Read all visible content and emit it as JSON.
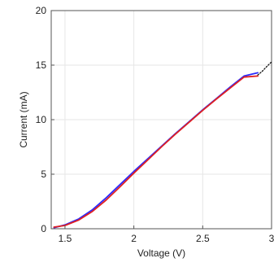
{
  "chart_data": {
    "type": "line",
    "title": "",
    "xlabel": "Voltage (V)",
    "ylabel": "Current (mA)",
    "xlim": [
      1.4,
      3.0
    ],
    "ylim": [
      0,
      20
    ],
    "xticks": [
      1.5,
      2,
      2.5,
      3
    ],
    "xtick_labels": [
      "1.5",
      "2",
      "2.5",
      "3"
    ],
    "yticks": [
      0,
      5,
      10,
      15,
      20
    ],
    "ytick_labels": [
      "0",
      "5",
      "10",
      "15",
      "20"
    ],
    "grid": true,
    "legend": "none",
    "series": [
      {
        "color": "#2a2aff",
        "style": "solid",
        "x": [
          1.42,
          1.5,
          1.6,
          1.7,
          1.8,
          1.9,
          2.0,
          2.1,
          2.2,
          2.3,
          2.4,
          2.5,
          2.6,
          2.7,
          2.8,
          2.9
        ],
        "y": [
          0.1,
          0.35,
          0.9,
          1.75,
          2.85,
          4.05,
          5.25,
          6.4,
          7.55,
          8.7,
          9.8,
          10.9,
          11.95,
          13.0,
          14.0,
          14.3
        ]
      },
      {
        "color": "#e02020",
        "style": "solid",
        "x": [
          1.42,
          1.5,
          1.6,
          1.7,
          1.8,
          1.9,
          2.0,
          2.1,
          2.2,
          2.3,
          2.4,
          2.5,
          2.6,
          2.7,
          2.8,
          2.9
        ],
        "y": [
          0.15,
          0.3,
          0.8,
          1.6,
          2.65,
          3.85,
          5.1,
          6.3,
          7.5,
          8.65,
          9.75,
          10.85,
          11.9,
          12.9,
          13.9,
          14.0
        ]
      },
      {
        "color": "#111111",
        "style": "dotted",
        "x": [
          2.9,
          2.93,
          2.96,
          3.0
        ],
        "y": [
          14.1,
          14.4,
          14.8,
          15.3
        ]
      }
    ]
  }
}
